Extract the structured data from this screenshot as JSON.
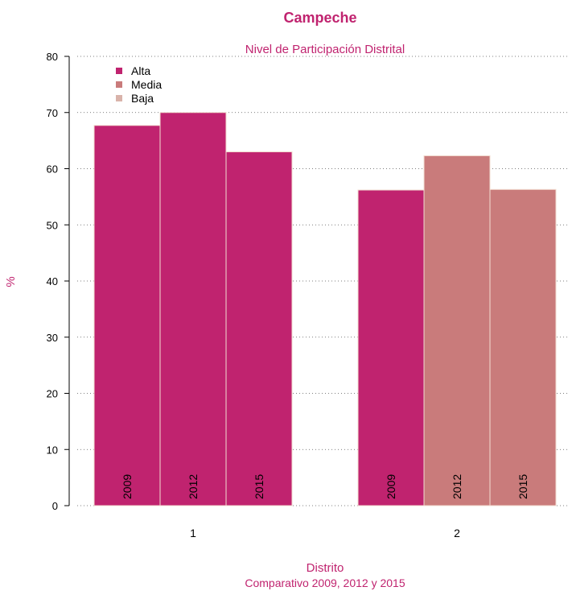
{
  "chart_data": {
    "type": "bar",
    "title": "Campeche",
    "subtitle": "Nivel de Participación Distrital",
    "xlabel": "Distrito",
    "xsublabel": "Comparativo 2009, 2012 y 2015",
    "ylabel": "%",
    "ylim": [
      0,
      80
    ],
    "yticks": [
      0,
      10,
      20,
      30,
      40,
      50,
      60,
      70,
      80
    ],
    "grid": true,
    "legend_position": "top-left",
    "legend": [
      {
        "label": "Alta",
        "color": "#c0236f"
      },
      {
        "label": "Media",
        "color": "#c97b7b"
      },
      {
        "label": "Baja",
        "color": "#d9b3aa"
      }
    ],
    "categories": [
      "1",
      "2"
    ],
    "bar_labels": [
      "2009",
      "2012",
      "2015"
    ],
    "groups": [
      {
        "category": "1",
        "bars": [
          {
            "year": "2009",
            "value": 67.7,
            "level": "Alta"
          },
          {
            "year": "2012",
            "value": 70.0,
            "level": "Alta"
          },
          {
            "year": "2015",
            "value": 63.0,
            "level": "Alta"
          }
        ]
      },
      {
        "category": "2",
        "bars": [
          {
            "year": "2009",
            "value": 56.2,
            "level": "Alta"
          },
          {
            "year": "2012",
            "value": 62.3,
            "level": "Media"
          },
          {
            "year": "2015",
            "value": 56.3,
            "level": "Media"
          }
        ]
      }
    ]
  }
}
